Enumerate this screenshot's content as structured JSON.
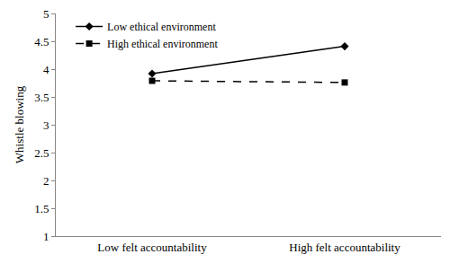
{
  "chart_data": {
    "type": "line",
    "categories": [
      "Low felt accountability",
      "High felt accountability"
    ],
    "y_label": "Whistle blowing",
    "series": [
      {
        "name": "Low ethical environment",
        "color": "#000000",
        "marker": "diamond",
        "line_style": "solid",
        "values": [
          3.92,
          4.41
        ]
      },
      {
        "name": "High ethical environment",
        "color": "#000000",
        "marker": "square",
        "line_style": "dash",
        "values": [
          3.79,
          3.76
        ]
      }
    ],
    "ylim": [
      1,
      5
    ],
    "yticks": [
      1,
      1.5,
      2,
      2.5,
      3,
      3.5,
      4,
      4.5,
      5
    ],
    "grid": false,
    "legend": "top left"
  }
}
